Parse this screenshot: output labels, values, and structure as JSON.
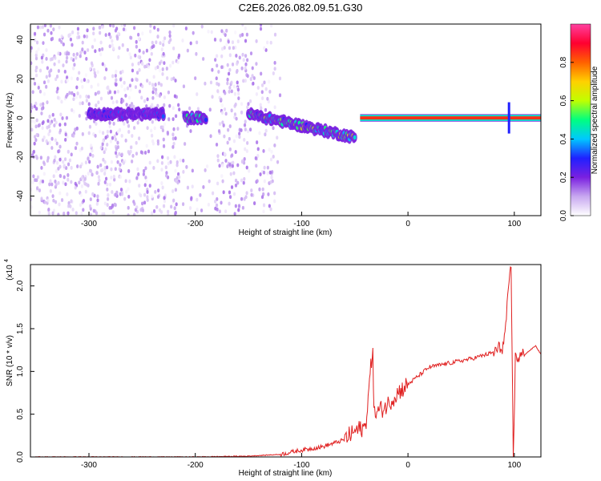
{
  "title": "C2E6.2026.082.09.51.G30",
  "chart_data": [
    {
      "type": "heatmap",
      "xlabel": "Height of straight line (km)",
      "ylabel": "Frequency (Hz)",
      "xlim": [
        -355,
        125
      ],
      "ylim": [
        -50,
        48
      ],
      "xticks": [
        -300,
        -200,
        -100,
        0,
        100
      ],
      "yticks": [
        -40,
        -20,
        0,
        20,
        40
      ],
      "colorbar": {
        "label": "Normalized spectral amplitude",
        "range": [
          0.0,
          1.0
        ],
        "ticks": [
          "0.0",
          "0.2",
          "0.4",
          "0.6",
          "0.8"
        ],
        "colors": [
          "#ffffff",
          "#c8a8f0",
          "#7a20e0",
          "#2020ff",
          "#00c8ff",
          "#00ff80",
          "#c0ff00",
          "#ffd000",
          "#ff6000",
          "#ff0030",
          "#ff40a0"
        ]
      },
      "features": {
        "noise_region_x": [
          -355,
          -120
        ],
        "band_segments": [
          {
            "x": [
              -300,
              -230
            ],
            "freq": 2,
            "amplitude": 0.25
          },
          {
            "x": [
              -210,
              -190
            ],
            "freq": 0,
            "amplitude": 0.4
          },
          {
            "x": [
              -150,
              -50
            ],
            "freq": [
              2,
              -10
            ],
            "amplitude": 0.45
          },
          {
            "x": [
              -45,
              125
            ],
            "freq": 0,
            "amplitude": 1.0
          }
        ],
        "spike_x": 95
      }
    },
    {
      "type": "line",
      "xlabel": "Height of straight line (km)",
      "ylabel": "SNR (10 * v/v)",
      "y_multiplier": "(x10",
      "y_multiplier_exp": "4",
      "xlim": [
        -355,
        125
      ],
      "ylim": [
        0,
        2.25
      ],
      "xticks": [
        -300,
        -200,
        -100,
        0,
        100
      ],
      "yticks": [
        "0.0",
        "0.5",
        "1.0",
        "1.5",
        "2.0"
      ],
      "color": "#e02020",
      "x": [
        -355,
        -300,
        -250,
        -200,
        -150,
        -120,
        -100,
        -80,
        -60,
        -50,
        -40,
        -33,
        -32,
        -20,
        -10,
        0,
        10,
        20,
        40,
        60,
        80,
        90,
        97,
        99,
        101,
        110,
        120,
        125
      ],
      "y": [
        0.0,
        0.0,
        0.0,
        0.0,
        0.01,
        0.03,
        0.08,
        0.12,
        0.2,
        0.3,
        0.35,
        1.3,
        0.5,
        0.6,
        0.75,
        0.85,
        0.95,
        1.05,
        1.1,
        1.15,
        1.22,
        1.3,
        2.25,
        0.0,
        1.15,
        1.2,
        1.3,
        1.2
      ]
    }
  ]
}
